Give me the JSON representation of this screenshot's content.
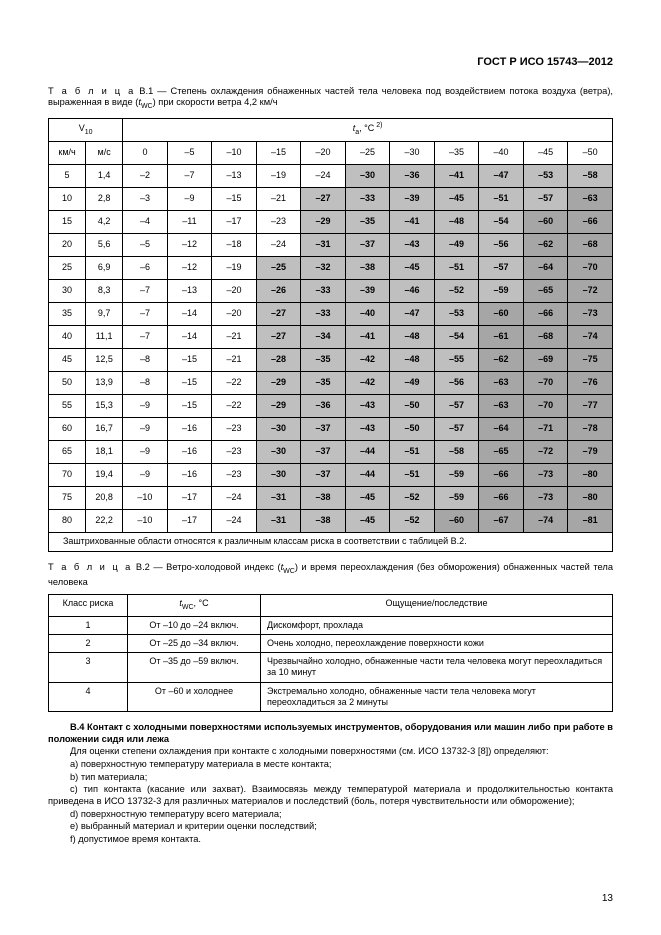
{
  "header": "ГОСТ Р ИСО 15743—2012",
  "cap1_a": "Т а б л и ц а",
  "cap1_b": " В.1 — Степень охлаждения обнаженных частей тела человека под воздействием потока воздуха (ветра), выраженная в виде (",
  "cap1_c": ") при скорости ветра 4,2 км/ч",
  "b1": {
    "v10": "V",
    "v10_sub": "10",
    "ta_hdr": "t",
    "ta_sub": "a",
    "ta_unit": ", °C",
    "ta_sup": " 2)",
    "sub_kmh": "км/ч",
    "sub_ms": "м/с",
    "temps": [
      "0",
      "–5",
      "–10",
      "–15",
      "–20",
      "–25",
      "–30",
      "–35",
      "–40",
      "–45",
      "–50"
    ],
    "rows": [
      {
        "k": "5",
        "m": "1,4",
        "v": [
          "–2",
          "–7",
          "–13",
          "–19",
          "–24",
          "–30",
          "–36",
          "–41",
          "–47",
          "–53",
          "–58"
        ],
        "s": [
          0,
          0,
          0,
          0,
          0,
          1,
          1,
          1,
          1,
          1,
          1
        ]
      },
      {
        "k": "10",
        "m": "2,8",
        "v": [
          "–3",
          "–9",
          "–15",
          "–21",
          "–27",
          "–33",
          "–39",
          "–45",
          "–51",
          "–57",
          "–63"
        ],
        "s": [
          0,
          0,
          0,
          0,
          1,
          1,
          1,
          1,
          1,
          1,
          2
        ]
      },
      {
        "k": "15",
        "m": "4,2",
        "v": [
          "–4",
          "–11",
          "–17",
          "–23",
          "–29",
          "–35",
          "–41",
          "–48",
          "–54",
          "–60",
          "–66"
        ],
        "s": [
          0,
          0,
          0,
          0,
          1,
          1,
          1,
          1,
          1,
          2,
          2
        ]
      },
      {
        "k": "20",
        "m": "5,6",
        "v": [
          "–5",
          "–12",
          "–18",
          "–24",
          "–31",
          "–37",
          "–43",
          "–49",
          "–56",
          "–62",
          "–68"
        ],
        "s": [
          0,
          0,
          0,
          0,
          1,
          1,
          1,
          1,
          1,
          2,
          2
        ]
      },
      {
        "k": "25",
        "m": "6,9",
        "v": [
          "–6",
          "–12",
          "–19",
          "–25",
          "–32",
          "–38",
          "–45",
          "–51",
          "–57",
          "–64",
          "–70"
        ],
        "s": [
          0,
          0,
          0,
          1,
          1,
          1,
          1,
          1,
          1,
          2,
          2
        ]
      },
      {
        "k": "30",
        "m": "8,3",
        "v": [
          "–7",
          "–13",
          "–20",
          "–26",
          "–33",
          "–39",
          "–46",
          "–52",
          "–59",
          "–65",
          "–72"
        ],
        "s": [
          0,
          0,
          0,
          1,
          1,
          1,
          1,
          1,
          1,
          2,
          2
        ]
      },
      {
        "k": "35",
        "m": "9,7",
        "v": [
          "–7",
          "–14",
          "–20",
          "–27",
          "–33",
          "–40",
          "–47",
          "–53",
          "–60",
          "–66",
          "–73"
        ],
        "s": [
          0,
          0,
          0,
          1,
          1,
          1,
          1,
          1,
          2,
          2,
          2
        ]
      },
      {
        "k": "40",
        "m": "11,1",
        "v": [
          "–7",
          "–14",
          "–21",
          "–27",
          "–34",
          "–41",
          "–48",
          "–54",
          "–61",
          "–68",
          "–74"
        ],
        "s": [
          0,
          0,
          0,
          1,
          1,
          1,
          1,
          1,
          2,
          2,
          2
        ]
      },
      {
        "k": "45",
        "m": "12,5",
        "v": [
          "–8",
          "–15",
          "–21",
          "–28",
          "–35",
          "–42",
          "–48",
          "–55",
          "–62",
          "–69",
          "–75"
        ],
        "s": [
          0,
          0,
          0,
          1,
          1,
          1,
          1,
          1,
          2,
          2,
          2
        ]
      },
      {
        "k": "50",
        "m": "13,9",
        "v": [
          "–8",
          "–15",
          "–22",
          "–29",
          "–35",
          "–42",
          "–49",
          "–56",
          "–63",
          "–70",
          "–76"
        ],
        "s": [
          0,
          0,
          0,
          1,
          1,
          1,
          1,
          1,
          2,
          2,
          2
        ]
      },
      {
        "k": "55",
        "m": "15,3",
        "v": [
          "–9",
          "–15",
          "–22",
          "–29",
          "–36",
          "–43",
          "–50",
          "–57",
          "–63",
          "–70",
          "–77"
        ],
        "s": [
          0,
          0,
          0,
          1,
          1,
          1,
          1,
          1,
          2,
          2,
          2
        ]
      },
      {
        "k": "60",
        "m": "16,7",
        "v": [
          "–9",
          "–16",
          "–23",
          "–30",
          "–37",
          "–43",
          "–50",
          "–57",
          "–64",
          "–71",
          "–78"
        ],
        "s": [
          0,
          0,
          0,
          1,
          1,
          1,
          1,
          1,
          2,
          2,
          2
        ]
      },
      {
        "k": "65",
        "m": "18,1",
        "v": [
          "–9",
          "–16",
          "–23",
          "–30",
          "–37",
          "–44",
          "–51",
          "–58",
          "–65",
          "–72",
          "–79"
        ],
        "s": [
          0,
          0,
          0,
          1,
          1,
          1,
          1,
          1,
          2,
          2,
          2
        ]
      },
      {
        "k": "70",
        "m": "19,4",
        "v": [
          "–9",
          "–16",
          "–23",
          "–30",
          "–37",
          "–44",
          "–51",
          "–59",
          "–66",
          "–73",
          "–80"
        ],
        "s": [
          0,
          0,
          0,
          1,
          1,
          1,
          1,
          1,
          2,
          2,
          2
        ]
      },
      {
        "k": "75",
        "m": "20,8",
        "v": [
          "–10",
          "–17",
          "–24",
          "–31",
          "–38",
          "–45",
          "–52",
          "–59",
          "–66",
          "–73",
          "–80"
        ],
        "s": [
          0,
          0,
          0,
          1,
          1,
          1,
          1,
          1,
          2,
          2,
          2
        ]
      },
      {
        "k": "80",
        "m": "22,2",
        "v": [
          "–10",
          "–17",
          "–24",
          "–31",
          "–38",
          "–45",
          "–52",
          "–60",
          "–67",
          "–74",
          "–81"
        ],
        "s": [
          0,
          0,
          0,
          1,
          1,
          1,
          1,
          2,
          2,
          2,
          2
        ]
      }
    ],
    "footnote": "Заштрихованные области относятся к различным классам риска в соответствии с таблицей В.2."
  },
  "cap2_a": "Т а б л и ц а",
  "cap2_b": " В.2 — Ветро-холодовой индекс (",
  "cap2_c": ") и время переохлаждения (без обморожения) обнаженных частей тела человека",
  "b2": {
    "h1": "Класс риска",
    "h2_pre": "t",
    "h2_sub": "WC",
    "h2_post": ", °C",
    "h3": "Ощущение/последствие",
    "rows": [
      {
        "a": "1",
        "b": "От –10 до –24 включ.",
        "c": "Дискомфорт, прохлада"
      },
      {
        "a": "2",
        "b": "От –25 до –34 включ.",
        "c": "Очень холодно, переохлаждение поверхности кожи"
      },
      {
        "a": "3",
        "b": "От –35 до –59 включ.",
        "c": "Чрезвычайно холодно, обнаженные части тела человека могут переохладиться за 10 минут"
      },
      {
        "a": "4",
        "b": "От –60 и холоднее",
        "c": "Экстремально холодно, обнаженные части тела человека могут переохладиться за 2 минуты"
      }
    ]
  },
  "section": {
    "title": "В.4 Контакт с холодными поверхностями используемых инструментов, оборудования или машин либо при работе в положении сидя или лежа",
    "p1": "Для оценки степени охлаждения при контакте с холодными поверхностями (см. ИСО 13732-3 [8]) определяют:",
    "a": "a) поверхностную температуру материала в месте контакта;",
    "b": "b) тип материала;",
    "c": "c) тип контакта (касание или захват). Взаимосвязь между температурой материала и продолжительностью контакта приведена в ИСО 13732-3 для различных материалов и последствий (боль, потеря чувствительности или обморожение);",
    "d": "d) поверхностную температуру всего материала;",
    "e": "e) выбранный материал и критерии оценки последствий;",
    "f": "f) допустимое время контакта."
  },
  "pagenum": "13",
  "twc_sub": "WC"
}
